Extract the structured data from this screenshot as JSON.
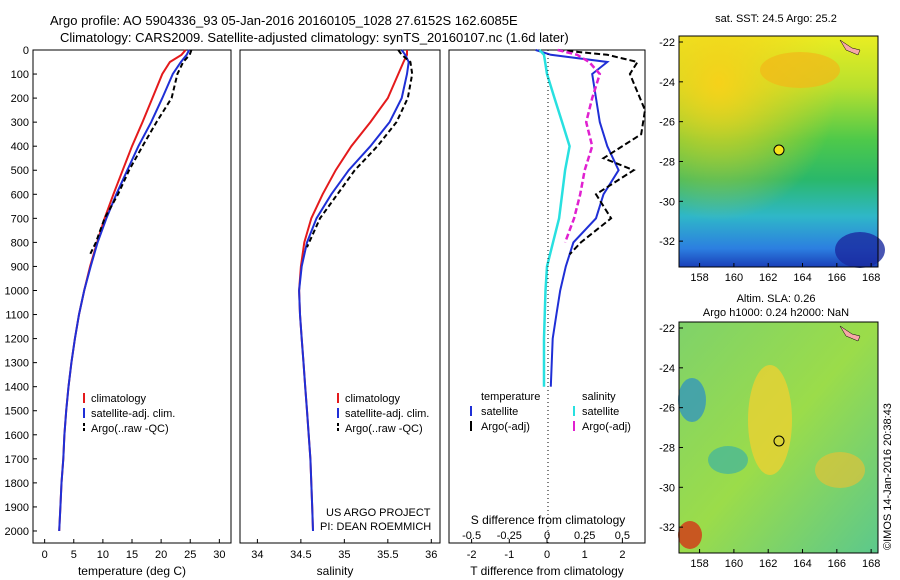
{
  "title": {
    "line1": "Argo profile: AO 5904336_93 05-Jan-2016 20160105_1028 27.6152S 162.6085E",
    "line2": "Climatology: CARS2009. Satellite-adjusted climatology: synTS_20160107.nc (1.6d later)"
  },
  "colors": {
    "climatology": "#e41a1c",
    "satellite": "#1f2fd6",
    "argo": "#000000",
    "sat_salinity": "#28e0e0",
    "argo_salinity": "#e020d0"
  },
  "panel_temp": {
    "xlabel": "temperature (deg C)",
    "xticks": [
      "0",
      "5",
      "10",
      "15",
      "20",
      "25",
      "30"
    ],
    "yticks": [
      "0",
      "100",
      "200",
      "300",
      "400",
      "500",
      "600",
      "700",
      "800",
      "900",
      "1000",
      "1100",
      "1200",
      "1300",
      "1400",
      "1500",
      "1600",
      "1700",
      "1800",
      "1900",
      "2000"
    ],
    "legend": [
      "climatology",
      "satellite-adj. clim.",
      "Argo(..raw -QC)"
    ]
  },
  "panel_sal": {
    "xlabel": "salinity",
    "xticks": [
      "34",
      "34.5",
      "35",
      "35.5",
      "36"
    ],
    "legend": [
      "climatology",
      "satellite-adj. clim.",
      "Argo(..raw -QC)"
    ],
    "credit1": "US ARGO PROJECT",
    "credit2": "PI: DEAN ROEMMICH"
  },
  "panel_diff": {
    "xlabel": "T difference from climatology",
    "xlabel_top": "S difference from climatology",
    "xticks": [
      "-2",
      "-1",
      "0",
      "1",
      "2"
    ],
    "xticks_top": [
      "-0.5",
      "-0.25",
      "0",
      "0.25",
      "0.5"
    ],
    "legend_temp_title": "temperature",
    "legend_sal_title": "salinity",
    "legend_temp": [
      "satellite",
      "Argo(-adj)"
    ],
    "legend_sal": [
      "satellite",
      "Argo(-adj)"
    ]
  },
  "map_sst": {
    "title": "sat. SST: 24.5 Argo: 25.2"
  },
  "map_sla": {
    "title1": "Altim. SLA: 0.26",
    "title2": "Argo h1000: 0.24 h2000: NaN"
  },
  "map_axes": {
    "xticks": [
      "158",
      "160",
      "162",
      "164",
      "166",
      "168"
    ],
    "yticks": [
      "-22",
      "-24",
      "-26",
      "-28",
      "-30",
      "-32"
    ]
  },
  "credit_side": "©IMOS 14-Jan-2016 20:38:43",
  "chart_data": [
    {
      "type": "line",
      "xlabel": "temperature (deg C)",
      "ylim": [
        2050,
        0
      ],
      "xlim": [
        -2,
        32
      ],
      "series": [
        {
          "name": "climatology",
          "x": [
            24.2,
            23.5,
            21.5,
            20.2,
            18.5,
            16.8,
            15.0,
            13.4,
            11.8,
            10.3,
            9.0,
            7.8,
            6.8,
            5.9,
            5.2,
            4.6,
            4.1,
            3.7,
            3.4,
            3.2,
            2.9,
            2.7,
            2.5
          ],
          "y": [
            0,
            20,
            50,
            100,
            200,
            300,
            400,
            500,
            600,
            700,
            800,
            900,
            1000,
            1100,
            1200,
            1300,
            1400,
            1500,
            1600,
            1700,
            1800,
            1900,
            2000
          ]
        },
        {
          "name": "satellite-adj. clim.",
          "x": [
            24.8,
            24.4,
            23.4,
            22.0,
            20.2,
            18.3,
            16.1,
            14.2,
            12.3,
            10.6,
            9.1,
            7.9,
            6.8,
            5.9,
            5.2,
            4.6,
            4.1,
            3.7,
            3.4,
            3.2,
            2.9,
            2.7,
            2.5
          ],
          "y": [
            0,
            20,
            50,
            100,
            200,
            300,
            400,
            500,
            600,
            700,
            800,
            900,
            1000,
            1100,
            1200,
            1300,
            1400,
            1500,
            1600,
            1700,
            1800,
            1900,
            2000
          ]
        },
        {
          "name": "Argo(..raw -QC)",
          "x": [
            25.2,
            24.9,
            23.8,
            22.8,
            21.8,
            19.2,
            16.8,
            14.5,
            12.6,
            10.3,
            8.8,
            7.8
          ],
          "y": [
            0,
            20,
            50,
            100,
            200,
            300,
            400,
            500,
            600,
            700,
            800,
            850
          ]
        }
      ]
    },
    {
      "type": "line",
      "xlabel": "salinity",
      "ylim": [
        2050,
        0
      ],
      "xlim": [
        33.8,
        36.1
      ],
      "series": [
        {
          "name": "climatology",
          "x": [
            35.72,
            35.72,
            35.68,
            35.62,
            35.5,
            35.3,
            35.08,
            34.9,
            34.75,
            34.62,
            34.54,
            34.5,
            34.48,
            34.49,
            34.51,
            34.53,
            34.55,
            34.57,
            34.59,
            34.61,
            34.62,
            34.63,
            34.64
          ],
          "y": [
            0,
            20,
            50,
            100,
            200,
            300,
            400,
            500,
            600,
            700,
            800,
            900,
            1000,
            1100,
            1200,
            1300,
            1400,
            1500,
            1600,
            1700,
            1800,
            1900,
            2000
          ]
        },
        {
          "name": "satellite-adj. clim.",
          "x": [
            35.66,
            35.7,
            35.74,
            35.72,
            35.66,
            35.52,
            35.3,
            35.05,
            34.85,
            34.68,
            34.57,
            34.51,
            34.48,
            34.49,
            34.51,
            34.53,
            34.55,
            34.57,
            34.59,
            34.61,
            34.62,
            34.63,
            34.64
          ],
          "y": [
            0,
            20,
            50,
            100,
            200,
            300,
            400,
            500,
            600,
            700,
            800,
            900,
            1000,
            1100,
            1200,
            1300,
            1400,
            1500,
            1600,
            1700,
            1800,
            1900,
            2000
          ]
        },
        {
          "name": "Argo(..raw -QC)",
          "x": [
            35.62,
            35.66,
            35.76,
            35.78,
            35.73,
            35.6,
            35.38,
            35.12,
            34.92,
            34.72,
            34.57
          ],
          "y": [
            0,
            20,
            50,
            100,
            200,
            300,
            400,
            500,
            600,
            700,
            820
          ]
        }
      ]
    },
    {
      "type": "line",
      "xlabel": "T difference from climatology",
      "xlabel_top": "S difference from climatology",
      "ylim": [
        2050,
        0
      ],
      "xlim": [
        -2.6,
        2.6
      ],
      "series": [
        {
          "name": "temperature satellite",
          "x": [
            -0.3,
            0.1,
            1.6,
            1.2,
            1.3,
            1.4,
            1.6,
            1.9,
            1.5,
            1.3,
            0.7,
            0.5,
            0.35,
            0.25,
            0.15,
            0.1
          ],
          "y": [
            0,
            20,
            50,
            100,
            200,
            300,
            400,
            500,
            600,
            700,
            800,
            900,
            1000,
            1100,
            1200,
            1400
          ]
        },
        {
          "name": "temperature Argo(-adj)",
          "x": [
            0.3,
            1.6,
            2.4,
            2.2,
            3.0,
            2.5,
            1.5,
            2.3,
            1.3,
            1.7,
            0.9,
            0.6
          ],
          "y": [
            0,
            20,
            50,
            100,
            250,
            350,
            450,
            500,
            600,
            700,
            800,
            850
          ]
        },
        {
          "name": "salinity satellite",
          "x": [
            -0.05,
            -0.02,
            0.0,
            0.05,
            0.1,
            0.15,
            0.12,
            0.1,
            0.08,
            0.04,
            0.0,
            -0.01,
            -0.02,
            -0.02
          ],
          "y": [
            0,
            20,
            100,
            200,
            300,
            400,
            500,
            600,
            700,
            800,
            900,
            1000,
            1200,
            1400
          ]
        },
        {
          "name": "salinity Argo(-adj)",
          "x": [
            0.07,
            0.2,
            0.28,
            0.35,
            0.3,
            0.26,
            0.3,
            0.25,
            0.22,
            0.18,
            0.12
          ],
          "y": [
            0,
            20,
            50,
            100,
            200,
            300,
            400,
            500,
            600,
            700,
            800
          ]
        }
      ]
    }
  ]
}
